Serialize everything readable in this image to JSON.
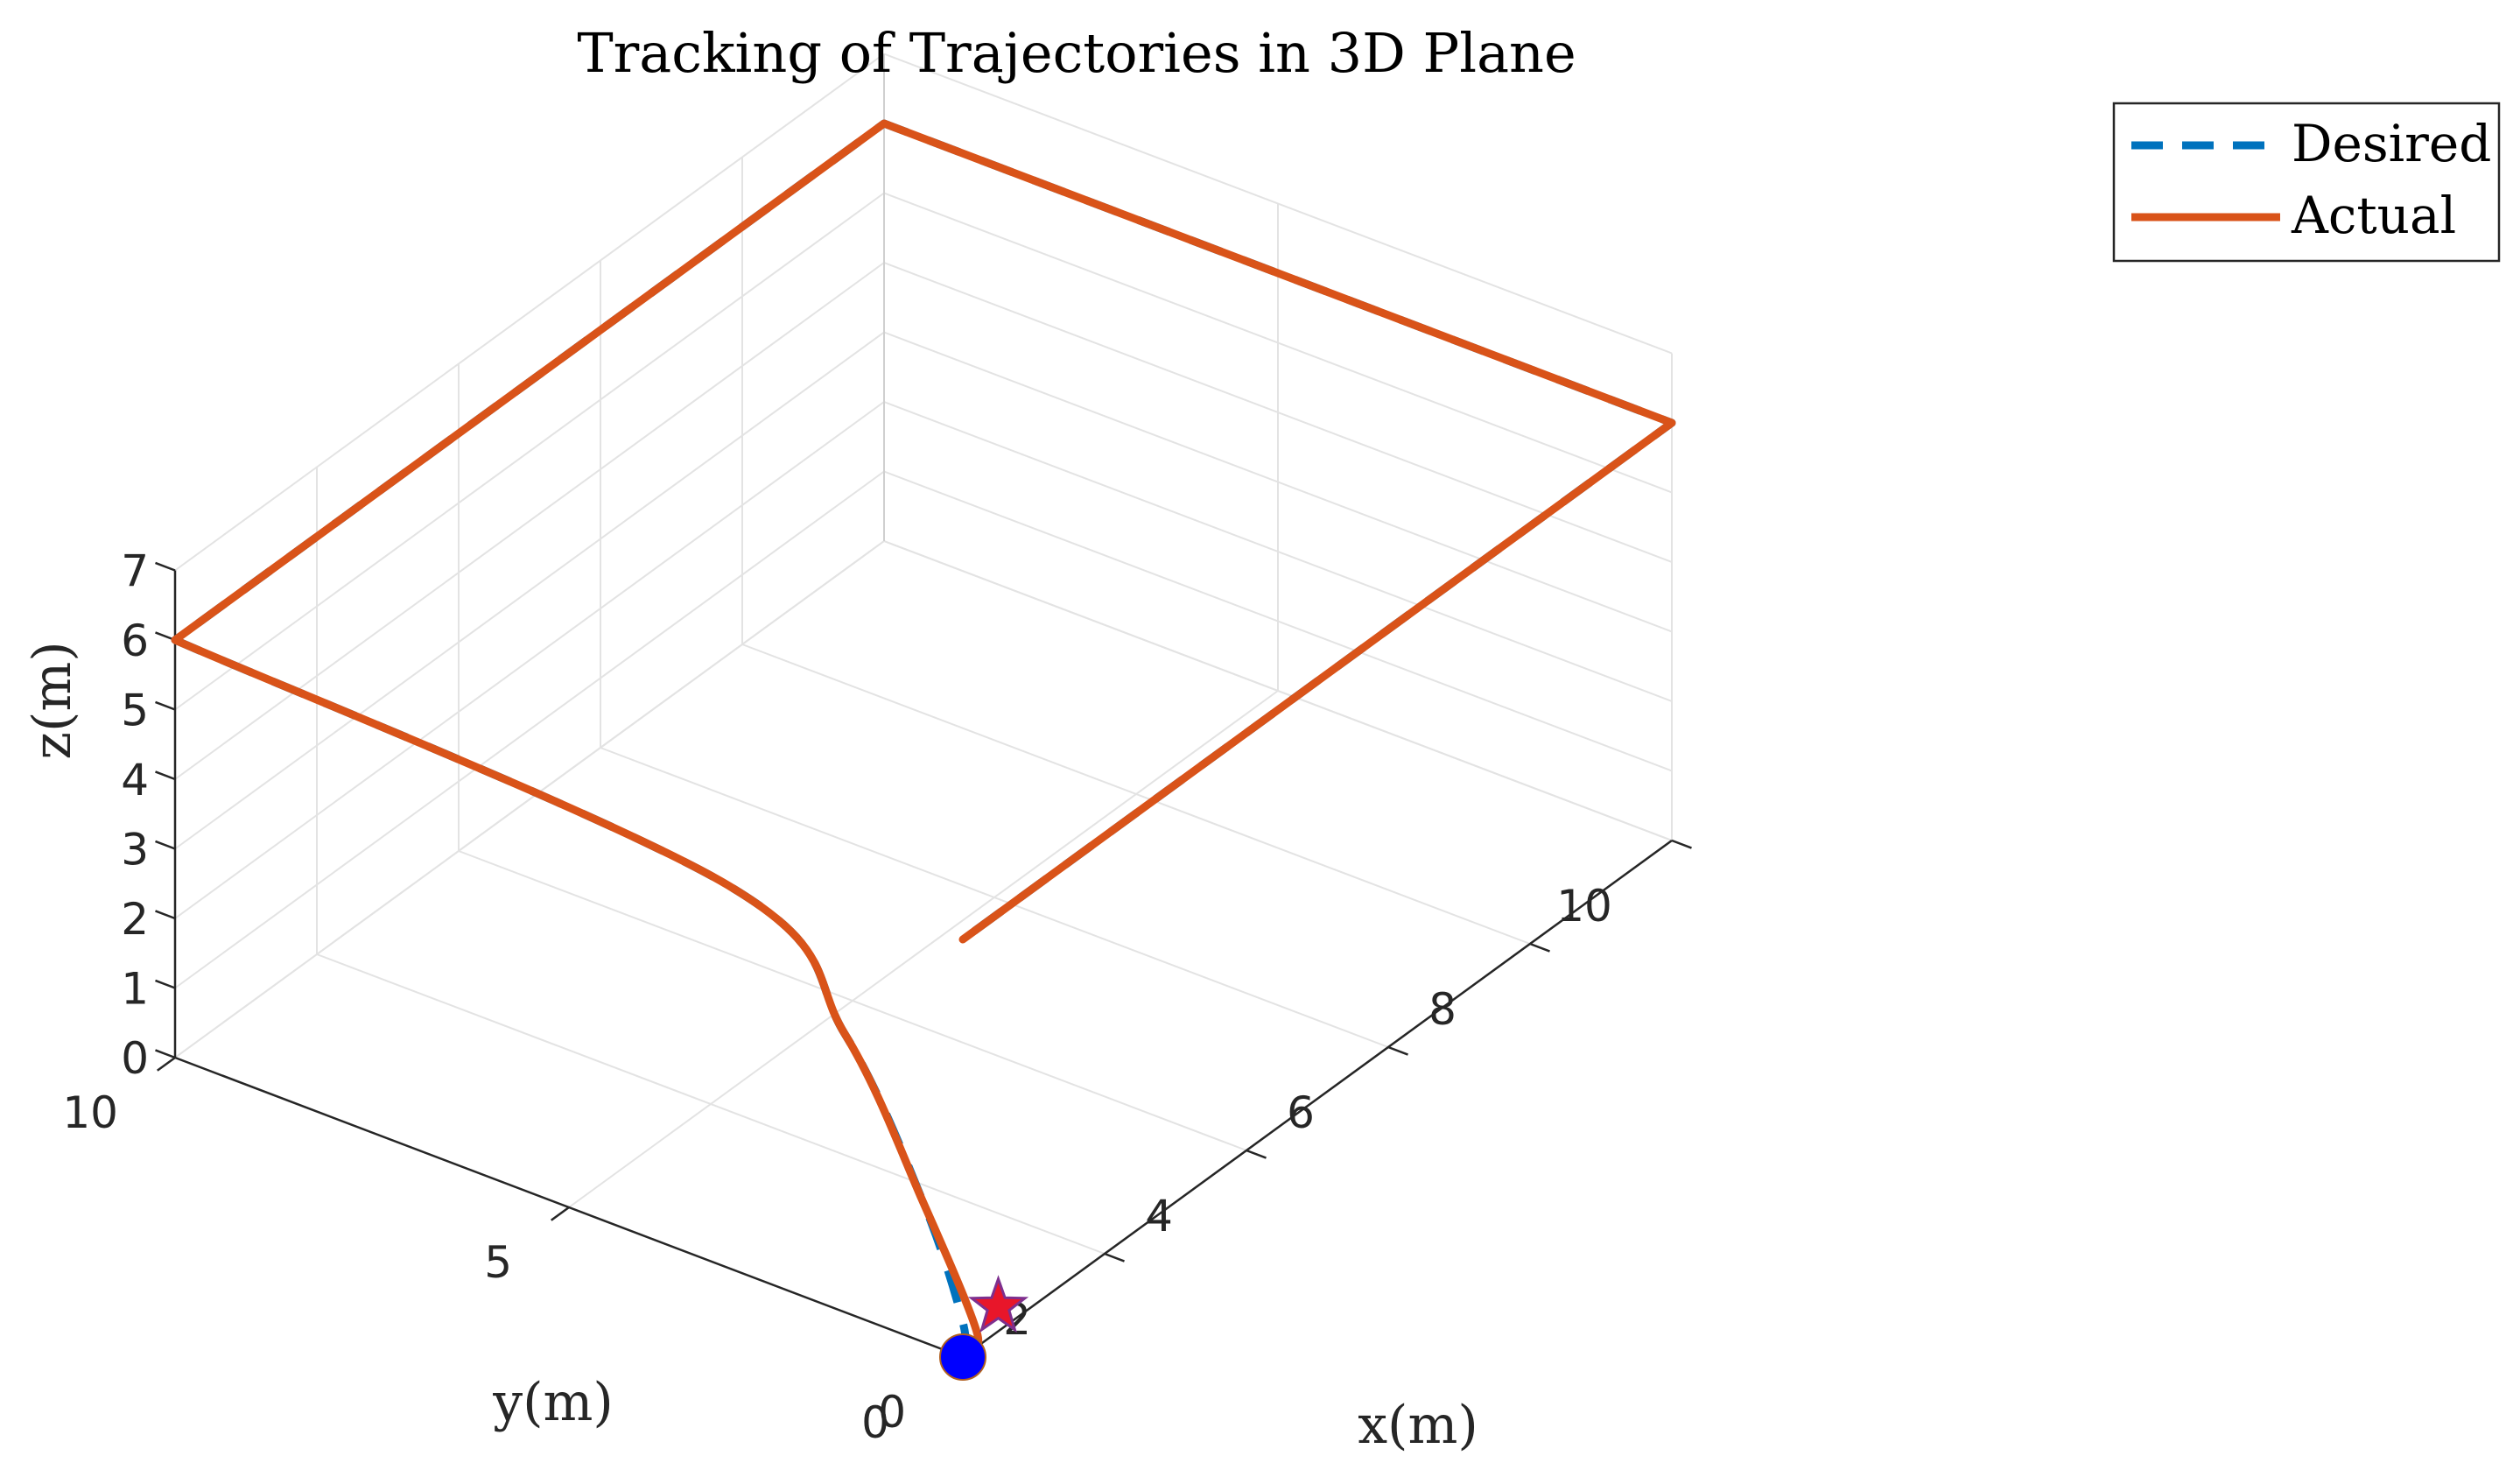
{
  "chart_data": {
    "type": "line",
    "projection": "3d",
    "title": "Tracking of Trajectories in 3D Plane",
    "xlabel": "x(m)",
    "ylabel": "y(m)",
    "zlabel": "z(m)",
    "xlim": [
      0,
      10
    ],
    "ylim": [
      0,
      10
    ],
    "zlim": [
      0,
      7
    ],
    "xticks": [
      "0",
      "2",
      "4",
      "6",
      "8",
      "10"
    ],
    "yticks": [
      "0",
      "5",
      "10"
    ],
    "zticks": [
      "0",
      "1",
      "2",
      "3",
      "4",
      "5",
      "6",
      "7"
    ],
    "grid": true,
    "legend": {
      "placement": "top-right-outside",
      "entries": [
        "Desired",
        "Actual"
      ]
    },
    "colors": {
      "desired": "#0072bd",
      "actual": "#d95319",
      "start_marker": "#0000ff",
      "end_marker": "#e8162a",
      "end_marker_edge": "#7e2f8e"
    },
    "series": [
      {
        "name": "Desired",
        "style": "dashed",
        "points": [
          [
            0,
            0,
            0
          ],
          [
            0,
            0,
            0.5
          ],
          [
            0,
            0.5,
            2.0
          ],
          [
            0,
            1.5,
            4.0
          ],
          [
            0,
            3.0,
            5.5
          ],
          [
            0,
            10,
            6
          ],
          [
            10,
            10,
            6
          ],
          [
            10,
            0,
            6
          ],
          [
            0,
            0,
            6
          ]
        ]
      },
      {
        "name": "Actual",
        "style": "solid",
        "points": [
          [
            0,
            0,
            0.2
          ],
          [
            0.2,
            0,
            0.2
          ],
          [
            0,
            0.5,
            2.0
          ],
          [
            0,
            1.5,
            4.0
          ],
          [
            0,
            3.0,
            5.5
          ],
          [
            0,
            10,
            6
          ],
          [
            10,
            10,
            6
          ],
          [
            10,
            0,
            6
          ],
          [
            0,
            0,
            6
          ]
        ]
      }
    ],
    "markers": [
      {
        "type": "circle",
        "label": "start",
        "point": [
          0,
          0,
          0
        ]
      },
      {
        "type": "star",
        "label": "end",
        "point": [
          0.5,
          0,
          0.35
        ]
      }
    ]
  }
}
